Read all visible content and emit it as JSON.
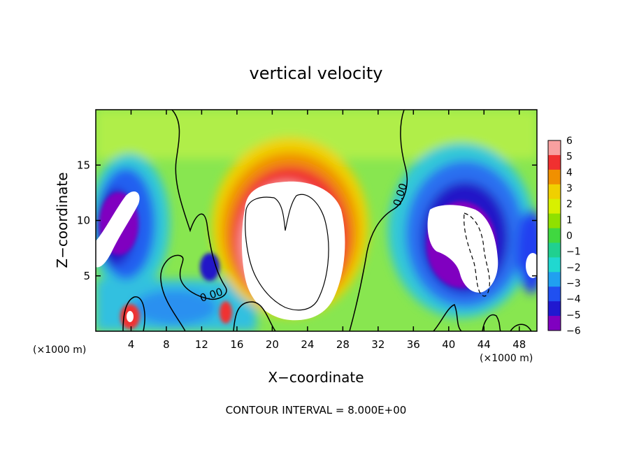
{
  "chart_data": {
    "type": "heatmap",
    "title": "vertical velocity",
    "xlabel": "X−coordinate",
    "ylabel": "Z−coordinate",
    "x_unit_left": "(×1000 m)",
    "x_unit_right": "(×1000 m)",
    "footer": "CONTOUR INTERVAL = 8.000E+00",
    "xlim": [
      0,
      50
    ],
    "ylim": [
      0,
      20
    ],
    "x_ticks": [
      4,
      8,
      12,
      16,
      20,
      24,
      28,
      32,
      36,
      40,
      44,
      48
    ],
    "y_ticks": [
      5,
      10,
      15
    ],
    "colorbar": {
      "levels": [
        6,
        5,
        4,
        3,
        2,
        1,
        0,
        -1,
        -2,
        -3,
        -4,
        -5,
        -6
      ],
      "labels": [
        "6",
        "5",
        "4",
        "3",
        "2",
        "1",
        "0",
        "−1",
        "−2",
        "−3",
        "−4",
        "−5",
        "−6"
      ],
      "colors": [
        "#f8a0a0",
        "#f03030",
        "#f09000",
        "#f0d000",
        "#d8f000",
        "#90e000",
        "#40d840",
        "#20d090",
        "#20d8d0",
        "#20a0f0",
        "#2050f0",
        "#2018d0",
        "#8000c0"
      ]
    },
    "contour_label": "0.00",
    "background_color": "#90e84a"
  }
}
